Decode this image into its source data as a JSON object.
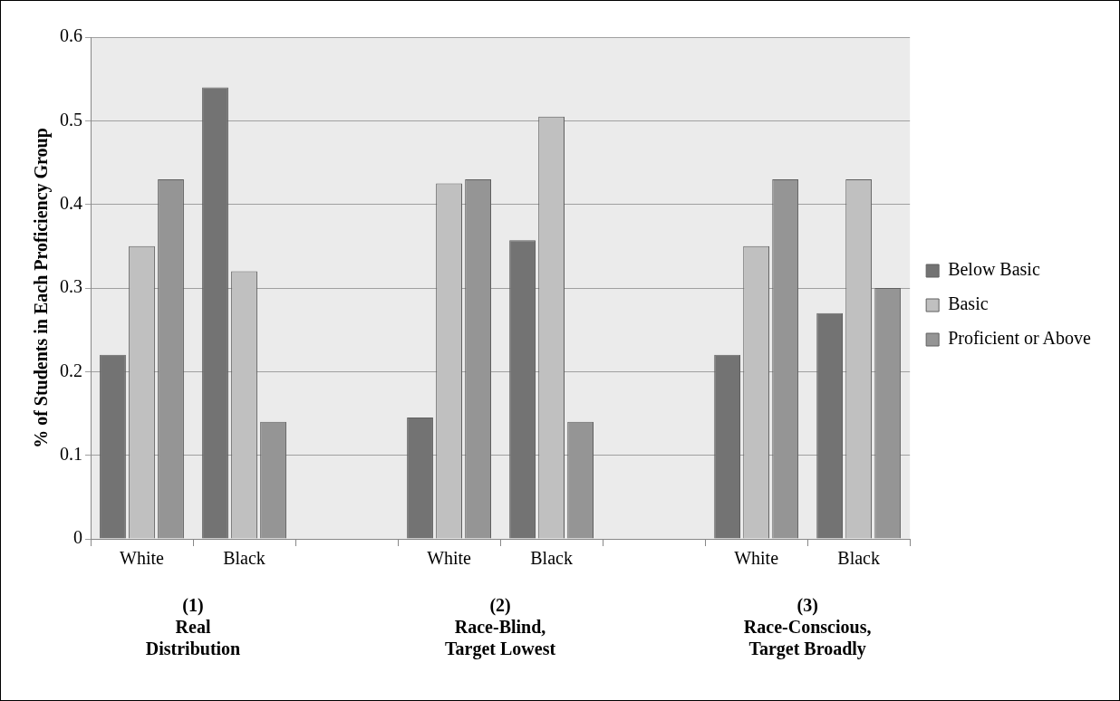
{
  "chart_data": {
    "type": "bar",
    "ylabel": "% of Students in Each Proficiency Group",
    "categories": [
      "White",
      "Black",
      null,
      "White",
      "Black",
      null,
      "White",
      "Black"
    ],
    "series": [
      {
        "name": "Below Basic",
        "color": "#737373",
        "values": [
          0.22,
          0.54,
          null,
          0.145,
          0.357,
          null,
          0.22,
          0.27
        ]
      },
      {
        "name": "Basic",
        "color": "#c0c0c0",
        "values": [
          0.35,
          0.32,
          null,
          0.425,
          0.505,
          null,
          0.35,
          0.43
        ]
      },
      {
        "name": "Proficient or Above",
        "color": "#959595",
        "values": [
          0.43,
          0.14,
          null,
          0.43,
          0.14,
          null,
          0.43,
          0.3
        ]
      }
    ],
    "annotations": [
      "(1)\nReal\nDistribution",
      "(2)\nRace-Blind,\nTarget Lowest",
      "(3)\nRace-Conscious,\nTarget Broadly"
    ],
    "ylim": [
      0,
      0.6
    ],
    "yticks": [
      0,
      0.1,
      0.2,
      0.3,
      0.4,
      0.5,
      0.6
    ],
    "grid": "y",
    "legend": "right"
  }
}
